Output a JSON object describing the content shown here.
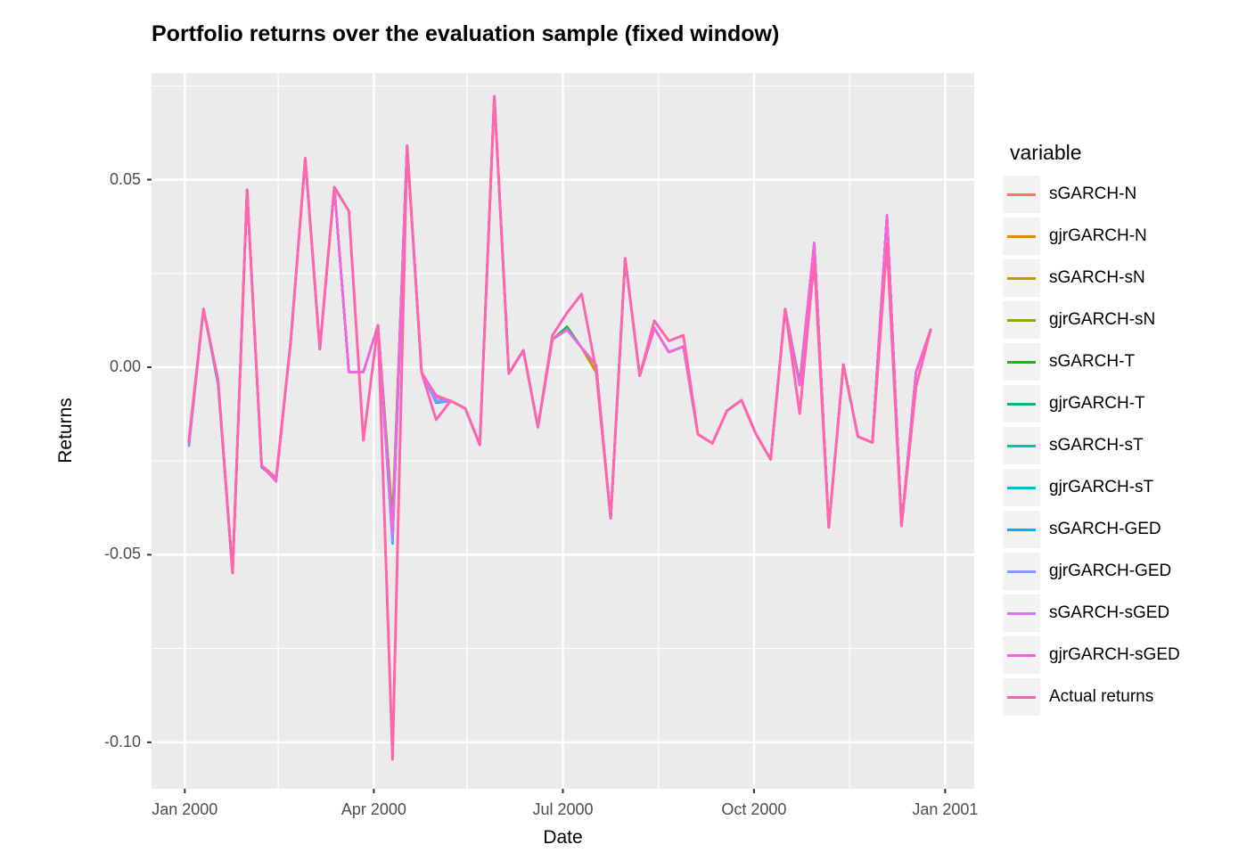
{
  "title": "Portfolio returns over the evaluation sample (fixed window)",
  "axes": {
    "x_label": "Date",
    "y_label": "Returns",
    "x_tick_labels": [
      "Jan 2000",
      "Apr 2000",
      "Jul 2000",
      "Oct 2000",
      "Jan 2001"
    ],
    "y_tick_labels": [
      "0.05",
      "0.00",
      "-0.05",
      "-0.10"
    ]
  },
  "legend": {
    "title": "variable"
  },
  "colors": {
    "panel_background": "#EBEBEB",
    "grid_line": "#FFFFFF",
    "tick_text": "#4D4D4D",
    "axis_tick_mark": "#333333",
    "legend_key_background": "#F2F2F2"
  },
  "chart_data": {
    "type": "line",
    "title": "Portfolio returns over the evaluation sample (fixed window)",
    "xlabel": "Date",
    "ylabel": "Returns",
    "grid": "on",
    "legend_position": "right",
    "legend_title": "variable",
    "ylim": [
      -0.1124,
      0.0784
    ],
    "x_domain_days_from_2000_01_01": [
      -16,
      380
    ],
    "y_major_ticks": [
      {
        "label": "0.05",
        "value": 0.05
      },
      {
        "label": "0.00",
        "value": 0.0
      },
      {
        "label": "-0.05",
        "value": -0.05
      },
      {
        "label": "-0.10",
        "value": -0.1
      }
    ],
    "y_minor_ticks": [
      0.075,
      0.025,
      -0.025,
      -0.075
    ],
    "x_major_ticks": [
      {
        "label": "Jan 2000",
        "date": "2000-01-01"
      },
      {
        "label": "Apr 2000",
        "date": "2000-04-01"
      },
      {
        "label": "Jul 2000",
        "date": "2000-07-01"
      },
      {
        "label": "Oct 2000",
        "date": "2000-10-01"
      },
      {
        "label": "Jan 2001",
        "date": "2001-01-01"
      }
    ],
    "x_minor_tick_dates": [
      "2000-02-15",
      "2000-05-16",
      "2000-08-16",
      "2000-11-16"
    ],
    "x_dates": [
      "2000-01-03",
      "2000-01-10",
      "2000-01-17",
      "2000-01-24",
      "2000-01-31",
      "2000-02-07",
      "2000-02-14",
      "2000-02-21",
      "2000-02-28",
      "2000-03-06",
      "2000-03-13",
      "2000-03-20",
      "2000-03-27",
      "2000-04-03",
      "2000-04-10",
      "2000-04-17",
      "2000-04-24",
      "2000-05-01",
      "2000-05-08",
      "2000-05-15",
      "2000-05-22",
      "2000-05-29",
      "2000-06-05",
      "2000-06-12",
      "2000-06-19",
      "2000-06-26",
      "2000-07-03",
      "2000-07-10",
      "2000-07-17",
      "2000-07-24",
      "2000-07-31",
      "2000-08-07",
      "2000-08-14",
      "2000-08-21",
      "2000-08-28",
      "2000-09-04",
      "2000-09-11",
      "2000-09-18",
      "2000-09-25",
      "2000-10-02",
      "2000-10-09",
      "2000-10-16",
      "2000-10-23",
      "2000-10-30",
      "2000-11-06",
      "2000-11-13",
      "2000-11-20",
      "2000-11-27",
      "2000-12-04",
      "2000-12-11",
      "2000-12-18",
      "2000-12-25"
    ],
    "actual": {
      "name": "Actual returns",
      "color": "#FF65AC",
      "values": [
        -0.0192,
        0.0155,
        -0.0033,
        -0.0549,
        0.0473,
        -0.0262,
        -0.0295,
        0.007,
        0.0557,
        0.0048,
        0.048,
        0.0416,
        -0.0195,
        0.0112,
        -0.1045,
        0.059,
        -0.0014,
        -0.014,
        -0.009,
        -0.011,
        -0.0207,
        0.0722,
        -0.0017,
        0.0045,
        -0.016,
        0.0085,
        0.0145,
        0.0195,
        -0.0008,
        -0.0403,
        0.029,
        -0.0023,
        0.0124,
        0.007,
        0.0085,
        -0.0179,
        -0.0203,
        -0.0116,
        -0.0088,
        -0.0179,
        -0.0246,
        0.0155,
        -0.0124,
        0.0286,
        -0.0427,
        0.0007,
        -0.0185,
        -0.0201,
        0.0329,
        -0.0423,
        -0.0052,
        0.01
      ],
      "min": -0.1045,
      "max": 0.0722
    },
    "model_base_values": [
      -0.02,
      0.0155,
      -0.0035,
      -0.0549,
      0.0473,
      -0.0263,
      -0.0298,
      0.007,
      0.0557,
      0.0048,
      0.048,
      -0.0013,
      -0.0013,
      0.0112,
      -0.044,
      0.059,
      -0.0014,
      -0.008,
      -0.009,
      -0.011,
      -0.0207,
      0.0722,
      -0.0017,
      0.0045,
      -0.016,
      0.0074,
      0.01,
      0.0052,
      0.0005,
      -0.0403,
      0.029,
      -0.0023,
      0.0104,
      0.004,
      0.0055,
      -0.0179,
      -0.0203,
      -0.0116,
      -0.0088,
      -0.0179,
      -0.0246,
      0.0155,
      -0.0048,
      0.0331,
      -0.0427,
      0.0007,
      -0.0185,
      -0.0201,
      0.0405,
      -0.0423,
      -0.0013,
      0.01
    ],
    "models": [
      {
        "name": "sGARCH-N",
        "color": "#F8766D",
        "overrides": {
          "14": -0.0415,
          "17": -0.0075
        }
      },
      {
        "name": "gjrGARCH-N",
        "color": "#E18A00",
        "overrides": {
          "14": -0.0425,
          "28": -0.0014
        }
      },
      {
        "name": "sGARCH-sN",
        "color": "#BE9C00",
        "overrides": {
          "14": -0.0405,
          "28": -0.0012
        }
      },
      {
        "name": "gjrGARCH-sN",
        "color": "#8CAB00",
        "overrides": {
          "14": -0.041
        }
      },
      {
        "name": "sGARCH-T",
        "color": "#24B700",
        "overrides": {
          "14": -0.043,
          "26": 0.0108,
          "42": -0.004
        }
      },
      {
        "name": "gjrGARCH-T",
        "color": "#00BE70",
        "overrides": {
          "14": -0.0435,
          "26": 0.0105
        }
      },
      {
        "name": "sGARCH-sT",
        "color": "#00C1AB",
        "overrides": {
          "0": -0.0208,
          "14": -0.0455,
          "17": -0.009
        }
      },
      {
        "name": "gjrGARCH-sT",
        "color": "#00BBDA",
        "overrides": {
          "2": -0.0042,
          "14": -0.046,
          "17": -0.009
        }
      },
      {
        "name": "sGARCH-GED",
        "color": "#00ACFC",
        "overrides": {
          "0": -0.021,
          "2": -0.0045,
          "5": -0.0267,
          "14": -0.047,
          "17": -0.0095
        }
      },
      {
        "name": "gjrGARCH-GED",
        "color": "#8B93FF",
        "overrides": {
          "0": -0.021,
          "6": -0.0303,
          "14": -0.0465,
          "17": -0.0092
        }
      },
      {
        "name": "sGARCH-sGED",
        "color": "#D575FE",
        "overrides": {
          "6": -0.0305,
          "14": -0.0445
        }
      },
      {
        "name": "gjrGARCH-sGED",
        "color": "#F962DD",
        "overrides": {
          "6": -0.0305,
          "14": -0.044
        }
      }
    ],
    "legend_entries": [
      "sGARCH-N",
      "gjrGARCH-N",
      "sGARCH-sN",
      "gjrGARCH-sN",
      "sGARCH-T",
      "gjrGARCH-T",
      "sGARCH-sT",
      "gjrGARCH-sT",
      "sGARCH-GED",
      "gjrGARCH-GED",
      "sGARCH-sGED",
      "gjrGARCH-sGED",
      "Actual returns"
    ]
  }
}
